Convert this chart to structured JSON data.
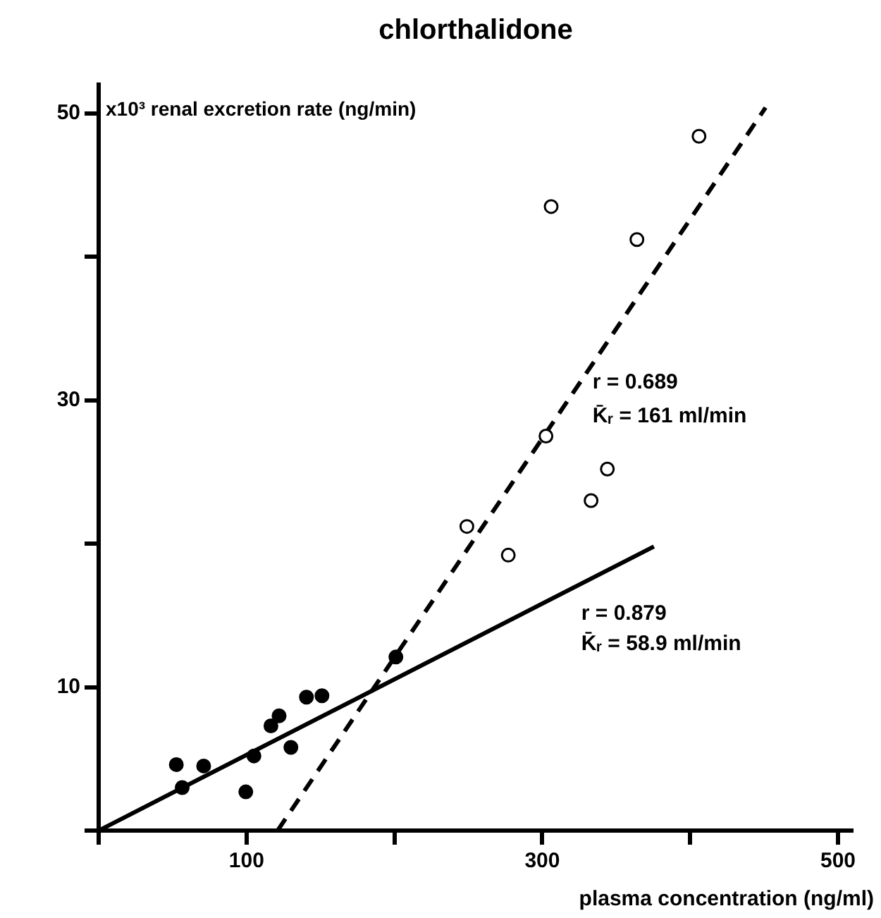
{
  "chart_data": {
    "type": "scatter",
    "title": "chlorthalidone",
    "xlabel": "plasma concentration (ng/ml)",
    "ylabel": "x10³ renal excretion rate (ng/min)",
    "xlim": [
      0,
      510
    ],
    "xticks": [
      {
        "value": 0,
        "label": null
      },
      100,
      {
        "value": 200,
        "label": null
      },
      300,
      {
        "value": 400,
        "label": null
      },
      500
    ],
    "ylim": [
      0,
      52
    ],
    "yticks": [
      {
        "value": 0,
        "label": null
      },
      10,
      {
        "value": 20,
        "label": null
      },
      30,
      {
        "value": 40,
        "label": null
      },
      50
    ],
    "grid": false,
    "legend": false,
    "marker": "circle",
    "series": [
      {
        "color": "#000000",
        "x": [
          52.5,
          56.5,
          71,
          99.5,
          105,
          116.5,
          122,
          130,
          140.5,
          151,
          201
        ],
        "values": [
          4.6,
          3.0,
          4.5,
          2.7,
          5.2,
          7.3,
          8.0,
          5.8,
          9.3,
          9.4,
          12.1
        ]
      },
      {
        "color": "#ffffff",
        "x": [
          249,
          277,
          302.5,
          306,
          333,
          344,
          364,
          406
        ],
        "values": [
          21.2,
          19.2,
          27.5,
          43.5,
          23.0,
          25.2,
          41.2,
          48.4
        ]
      },
      {
        "type": "line",
        "color": "#000000",
        "line_style": "solid",
        "marker": "none",
        "x": [
          0,
          375.5
        ],
        "values": [
          0,
          19.8
        ]
      },
      {
        "type": "line",
        "color": "#000000",
        "line_style": "dashed",
        "marker": "none",
        "x": [
          121,
          451
        ],
        "values": [
          0,
          50.4
        ]
      }
    ],
    "annotations": [
      "r = 0.689",
      "K̄ᵣ = 161 ml/min",
      "r = 0.879",
      "K̄ᵣ = 58.9 ml/min"
    ]
  }
}
